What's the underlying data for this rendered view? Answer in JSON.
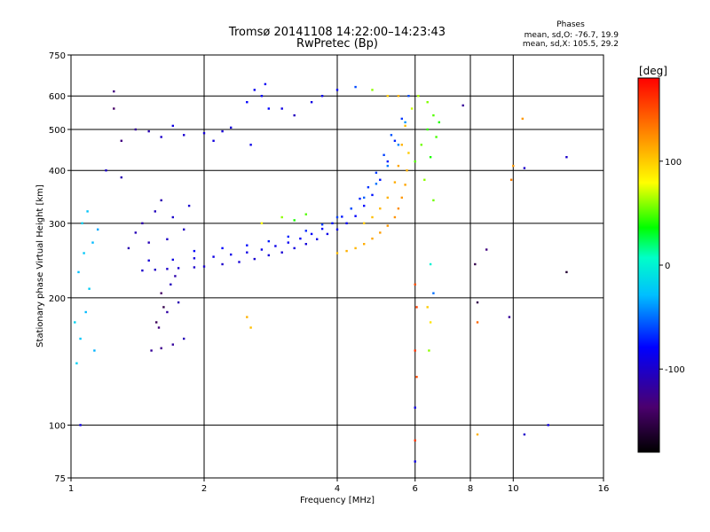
{
  "chart_data": {
    "type": "scatter",
    "title": "Tromsø 20141108 14:22:00–14:23:43",
    "subtitle": "RwPretec (Bp)",
    "xlabel": "Frequency [MHz]",
    "ylabel": "Stationary phase Virtual Height [km]",
    "x_scale": "log",
    "y_scale": "log",
    "xlim": [
      1,
      16
    ],
    "ylim": [
      75,
      750
    ],
    "x_ticks": [
      1,
      2,
      4,
      6,
      8,
      10,
      16
    ],
    "x_tick_labels": [
      "1",
      "2",
      "4",
      "6",
      "8",
      "10",
      "16"
    ],
    "y_ticks": [
      75,
      100,
      200,
      300,
      400,
      500,
      600,
      750
    ],
    "y_tick_labels": [
      "75",
      "100",
      "200",
      "300",
      "400",
      "500",
      "600",
      "750"
    ],
    "grid": true,
    "stats": {
      "heading": "Phases",
      "line_o": "mean, sd,O: -76.7, 19.9",
      "line_x": "mean, sd,X: 105.5, 29.2"
    },
    "colorbar": {
      "label": "[deg]",
      "min": -180,
      "max": 180,
      "ticks": [
        100,
        0,
        -100
      ],
      "tick_labels": [
        "100",
        "0",
        "-100"
      ]
    },
    "series": [
      {
        "points": [
          [
            1.45,
            232,
            -100
          ],
          [
            1.55,
            233,
            -102
          ],
          [
            1.65,
            234,
            -100
          ],
          [
            1.75,
            235,
            -98
          ],
          [
            1.9,
            236,
            -100
          ],
          [
            2.0,
            237,
            -98
          ],
          [
            2.2,
            240,
            -100
          ],
          [
            2.4,
            243,
            -95
          ],
          [
            2.6,
            247,
            -98
          ],
          [
            2.8,
            252,
            -95
          ],
          [
            3.0,
            256,
            -96
          ],
          [
            3.2,
            262,
            -92
          ],
          [
            3.4,
            268,
            -94
          ],
          [
            3.6,
            275,
            -90
          ],
          [
            3.8,
            283,
            -88
          ],
          [
            4.0,
            290,
            -85
          ],
          [
            4.2,
            300,
            -82
          ],
          [
            4.4,
            312,
            -80
          ],
          [
            4.6,
            330,
            -78
          ],
          [
            4.8,
            350,
            -75
          ],
          [
            5.0,
            380,
            -74
          ],
          [
            5.2,
            420,
            -72
          ],
          [
            5.4,
            470,
            -70
          ],
          [
            5.6,
            530,
            -65
          ],
          [
            5.8,
            600,
            -60
          ],
          [
            1.5,
            245,
            -95
          ],
          [
            1.7,
            246,
            -90
          ],
          [
            1.9,
            248,
            -92
          ],
          [
            2.1,
            250,
            -90
          ],
          [
            2.3,
            253,
            -88
          ],
          [
            2.5,
            256,
            -90
          ],
          [
            2.7,
            260,
            -86
          ],
          [
            2.9,
            265,
            -88
          ],
          [
            3.1,
            270,
            -84
          ],
          [
            3.3,
            276,
            -82
          ],
          [
            3.5,
            283,
            -80
          ],
          [
            3.7,
            291,
            -78
          ],
          [
            3.9,
            300,
            -75
          ],
          [
            4.1,
            311,
            -74
          ],
          [
            4.3,
            325,
            -72
          ],
          [
            4.5,
            343,
            -70
          ],
          [
            4.7,
            365,
            -66
          ],
          [
            4.9,
            395,
            -64
          ],
          [
            5.1,
            435,
            -62
          ],
          [
            5.3,
            485,
            -58
          ],
          [
            1.9,
            258,
            -80
          ],
          [
            2.2,
            262,
            -78
          ],
          [
            2.5,
            266,
            -76
          ],
          [
            2.8,
            272,
            -72
          ],
          [
            3.1,
            279,
            -70
          ],
          [
            3.4,
            288,
            -68
          ],
          [
            3.7,
            298,
            -64
          ],
          [
            4.0,
            310,
            -62
          ],
          [
            4.3,
            325,
            -58
          ],
          [
            4.6,
            345,
            -55
          ],
          [
            4.9,
            372,
            -50
          ],
          [
            5.2,
            410,
            -48
          ],
          [
            5.5,
            460,
            -45
          ],
          [
            5.7,
            520,
            -40
          ],
          [
            1.35,
            262,
            -110
          ],
          [
            1.4,
            285,
            -108
          ],
          [
            1.45,
            300,
            -112
          ],
          [
            1.55,
            320,
            -105
          ],
          [
            1.6,
            340,
            -110
          ],
          [
            1.7,
            310,
            -100
          ],
          [
            1.8,
            290,
            -104
          ],
          [
            1.65,
            275,
            -102
          ],
          [
            1.5,
            270,
            -108
          ],
          [
            1.85,
            330,
            -98
          ],
          [
            1.52,
            150,
            -120
          ],
          [
            1.6,
            152,
            -125
          ],
          [
            1.7,
            155,
            -118
          ],
          [
            1.58,
            170,
            -130
          ],
          [
            1.65,
            185,
            -115
          ],
          [
            1.75,
            195,
            -110
          ],
          [
            1.6,
            205,
            -140
          ],
          [
            1.68,
            215,
            -105
          ],
          [
            1.72,
            225,
            -112
          ],
          [
            1.8,
            160,
            -108
          ],
          [
            1.56,
            175,
            -145
          ],
          [
            1.62,
            190,
            -150
          ],
          [
            1.03,
            140,
            -20
          ],
          [
            1.05,
            160,
            -25
          ],
          [
            1.08,
            185,
            -30
          ],
          [
            1.1,
            210,
            -22
          ],
          [
            1.04,
            230,
            -28
          ],
          [
            1.07,
            255,
            -24
          ],
          [
            1.12,
            270,
            -30
          ],
          [
            1.15,
            290,
            -35
          ],
          [
            1.06,
            300,
            -20
          ],
          [
            1.09,
            320,
            -26
          ],
          [
            1.02,
            175,
            -18
          ],
          [
            1.13,
            150,
            -32
          ],
          [
            1.6,
            480,
            -100
          ],
          [
            1.8,
            485,
            -98
          ],
          [
            2.0,
            490,
            -95
          ],
          [
            2.2,
            495,
            -96
          ],
          [
            1.5,
            495,
            -110
          ],
          [
            1.3,
            470,
            -130
          ],
          [
            1.4,
            500,
            -120
          ],
          [
            1.7,
            510,
            -90
          ],
          [
            2.1,
            470,
            -92
          ],
          [
            2.3,
            505,
            -94
          ],
          [
            2.5,
            580,
            -80
          ],
          [
            2.6,
            620,
            -85
          ],
          [
            2.7,
            600,
            -82
          ],
          [
            2.8,
            560,
            -78
          ],
          [
            2.55,
            460,
            -88
          ],
          [
            2.75,
            640,
            -84
          ],
          [
            3.0,
            560,
            -90
          ],
          [
            3.2,
            540,
            -105
          ],
          [
            3.5,
            580,
            -90
          ],
          [
            3.7,
            600,
            -86
          ],
          [
            4.0,
            620,
            -80
          ],
          [
            4.4,
            630,
            -60
          ],
          [
            4.8,
            620,
            60
          ],
          [
            5.2,
            600,
            100
          ],
          [
            5.5,
            600,
            110
          ],
          [
            4.0,
            255,
            105
          ],
          [
            4.2,
            258,
            110
          ],
          [
            4.4,
            262,
            108
          ],
          [
            4.6,
            268,
            112
          ],
          [
            4.8,
            276,
            115
          ],
          [
            5.0,
            285,
            118
          ],
          [
            5.2,
            296,
            120
          ],
          [
            5.4,
            310,
            122
          ],
          [
            5.5,
            325,
            125
          ],
          [
            5.6,
            345,
            120
          ],
          [
            5.7,
            370,
            115
          ],
          [
            5.75,
            400,
            110
          ],
          [
            5.8,
            440,
            100
          ],
          [
            4.6,
            300,
            100
          ],
          [
            4.8,
            310,
            105
          ],
          [
            5.0,
            325,
            108
          ],
          [
            5.2,
            345,
            110
          ],
          [
            5.4,
            375,
            112
          ],
          [
            5.5,
            410,
            115
          ],
          [
            5.6,
            460,
            110
          ],
          [
            5.7,
            510,
            105
          ],
          [
            6.0,
            420,
            50
          ],
          [
            6.2,
            460,
            55
          ],
          [
            6.4,
            500,
            45
          ],
          [
            6.6,
            540,
            50
          ],
          [
            6.3,
            380,
            60
          ],
          [
            6.5,
            430,
            40
          ],
          [
            6.7,
            480,
            48
          ],
          [
            5.9,
            560,
            70
          ],
          [
            6.1,
            600,
            65
          ],
          [
            6.6,
            340,
            55
          ],
          [
            6.8,
            520,
            42
          ],
          [
            6.4,
            580,
            58
          ],
          [
            3.0,
            310,
            60
          ],
          [
            3.2,
            305,
            40
          ],
          [
            2.7,
            300,
            80
          ],
          [
            3.4,
            315,
            50
          ],
          [
            2.5,
            180,
            110
          ],
          [
            2.55,
            170,
            105
          ],
          [
            6.0,
            215,
            150
          ],
          [
            6.05,
            190,
            155
          ],
          [
            6.0,
            150,
            160
          ],
          [
            6.05,
            130,
            150
          ],
          [
            6.0,
            110,
            -90
          ],
          [
            6.0,
            92,
            160
          ],
          [
            6.0,
            82,
            -90
          ],
          [
            6.4,
            190,
            100
          ],
          [
            6.5,
            175,
            90
          ],
          [
            6.45,
            150,
            60
          ],
          [
            8.3,
            195,
            -150
          ],
          [
            8.3,
            175,
            140
          ],
          [
            8.3,
            95,
            110
          ],
          [
            9.8,
            180,
            -120
          ],
          [
            10.6,
            95,
            -100
          ],
          [
            12.0,
            100,
            -90
          ],
          [
            13.2,
            230,
            -160
          ],
          [
            13.2,
            430,
            -100
          ],
          [
            10.0,
            410,
            120
          ],
          [
            9.9,
            380,
            130
          ],
          [
            10.6,
            405,
            -100
          ],
          [
            10.5,
            530,
            120
          ],
          [
            7.7,
            570,
            -120
          ],
          [
            8.7,
            260,
            -130
          ],
          [
            8.2,
            240,
            -150
          ],
          [
            1.05,
            100,
            -90
          ],
          [
            1.25,
            615,
            -130
          ],
          [
            1.25,
            560,
            -140
          ],
          [
            1.2,
            400,
            -100
          ],
          [
            1.3,
            385,
            -110
          ],
          [
            6.5,
            240,
            0
          ],
          [
            6.6,
            205,
            -50
          ]
        ]
      }
    ]
  }
}
